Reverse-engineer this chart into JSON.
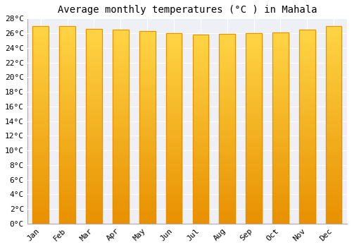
{
  "title": "Average monthly temperatures (°C ) in Mahala",
  "months": [
    "Jan",
    "Feb",
    "Mar",
    "Apr",
    "May",
    "Jun",
    "Jul",
    "Aug",
    "Sep",
    "Oct",
    "Nov",
    "Dec"
  ],
  "values": [
    27.0,
    27.0,
    26.6,
    26.5,
    26.3,
    26.0,
    25.8,
    25.9,
    26.0,
    26.1,
    26.5,
    27.0
  ],
  "bar_color_center": "#FFD040",
  "bar_color_edge": "#E89000",
  "background_color": "#ffffff",
  "plot_background_color": "#eef0f5",
  "grid_color": "#ffffff",
  "ylim": [
    0,
    28
  ],
  "ytick_step": 2,
  "title_fontsize": 10,
  "tick_fontsize": 8,
  "font_family": "monospace",
  "bar_width": 0.6
}
